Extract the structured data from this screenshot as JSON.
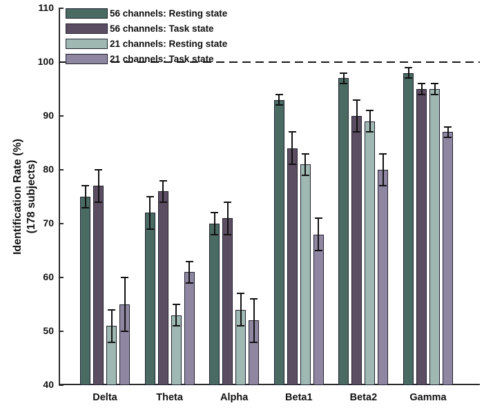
{
  "figure": {
    "background_color": "#ffffff",
    "y_axis_title_line1": "Identification Rate (%)",
    "y_axis_title_line2": "(178 subjects)"
  },
  "chart_data": {
    "type": "bar",
    "title": "",
    "xlabel": "",
    "ylabel": "Identification Rate (%) (178 subjects)",
    "ylim": [
      40,
      110
    ],
    "yticks": [
      40,
      50,
      60,
      70,
      80,
      90,
      100,
      110
    ],
    "grid": false,
    "legend_position": "top-left-inside",
    "error_bars": true,
    "reference_line": {
      "y": 100,
      "style": "dashed",
      "color": "#161616"
    },
    "categories": [
      "Delta",
      "Theta",
      "Alpha",
      "Beta1",
      "Beta2",
      "Gamma"
    ],
    "series": [
      {
        "name": "56 channels: Resting state",
        "color": "#4A6B62",
        "values": [
          75,
          72,
          70,
          93,
          97,
          98
        ],
        "errors": [
          2,
          3,
          2,
          1,
          1,
          1
        ]
      },
      {
        "name": "56 channels: Task state",
        "color": "#5C4E62",
        "values": [
          77,
          76,
          71,
          84,
          90,
          95
        ],
        "errors": [
          3,
          2,
          3,
          3,
          3,
          1
        ]
      },
      {
        "name": "21 channels: Resting state",
        "color": "#9FB9B2",
        "values": [
          51,
          53,
          54,
          81,
          89,
          95
        ],
        "errors": [
          3,
          2,
          3,
          2,
          2,
          1
        ]
      },
      {
        "name": "21 channels: Task state",
        "color": "#8F87A2",
        "values": [
          55,
          61,
          52,
          68,
          80,
          87
        ],
        "errors": [
          5,
          2,
          4,
          3,
          3,
          1
        ]
      }
    ],
    "bar_outline_color": "#20202e",
    "error_bar_color": "#101010",
    "axis_color": "#2a2a2a"
  }
}
